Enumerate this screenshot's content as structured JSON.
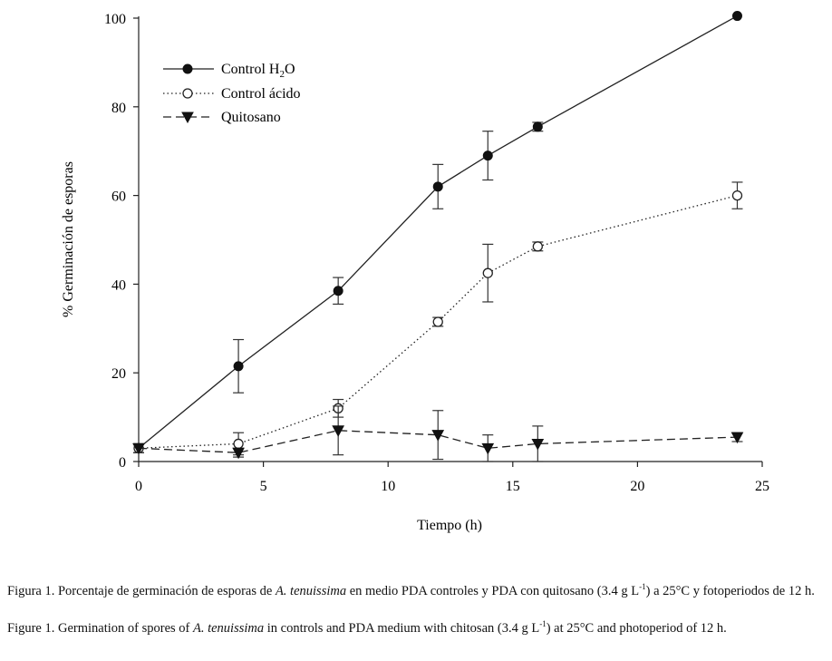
{
  "chart_data": {
    "type": "line",
    "xlabel": "Tiempo (h)",
    "ylabel": "% Germinación de esporas",
    "xlim": [
      0,
      25
    ],
    "ylim": [
      0,
      100
    ],
    "xticks": [
      0,
      5,
      10,
      15,
      20,
      25
    ],
    "yticks": [
      0,
      20,
      40,
      60,
      80,
      100
    ],
    "grid": false,
    "legend_position": "top-left",
    "series": [
      {
        "name_prefix": "Control H",
        "name_sub": "2",
        "name_suffix": "O",
        "style": "solid",
        "marker": "filled-circle",
        "x": [
          0,
          4,
          8,
          12,
          14,
          16,
          24
        ],
        "y": [
          3,
          21.5,
          38.5,
          62,
          69,
          75.5,
          100.5
        ],
        "err": [
          1,
          6,
          3,
          5,
          5.5,
          1,
          0
        ]
      },
      {
        "name": "Control ácido",
        "style": "dotted",
        "marker": "open-circle",
        "x": [
          0,
          4,
          8,
          12,
          14,
          16,
          24
        ],
        "y": [
          3,
          4,
          12,
          31.5,
          42.5,
          48.5,
          60
        ],
        "err": [
          1,
          2.5,
          2,
          1,
          6.5,
          1,
          3
        ]
      },
      {
        "name": "Quitosano",
        "style": "dashed",
        "marker": "filled-triangle-down",
        "x": [
          0,
          4,
          8,
          12,
          14,
          16,
          24
        ],
        "y": [
          3,
          2,
          7,
          6,
          3,
          4,
          5.5
        ],
        "err": [
          1,
          1,
          5.5,
          5.5,
          3,
          4,
          1
        ]
      }
    ]
  },
  "caption": {
    "es_label": "Figura 1.",
    "es_text1": " Porcentaje de germinación de esporas de ",
    "es_species": "A. tenuissima",
    "es_text2": " en medio PDA controles y PDA con quitosano (3.4 g L",
    "es_exp": "-1",
    "es_text3": ") a 25°C y fotoperiodos de 12 h.",
    "en_label": "Figure 1.",
    "en_text1": " Germination of spores of ",
    "en_species": "A. tenuissima",
    "en_text2": " in controls and PDA  medium with chitosan (3.4 g L",
    "en_exp": "-1",
    "en_text3": ") at 25°C and photoperiod of 12 h."
  }
}
